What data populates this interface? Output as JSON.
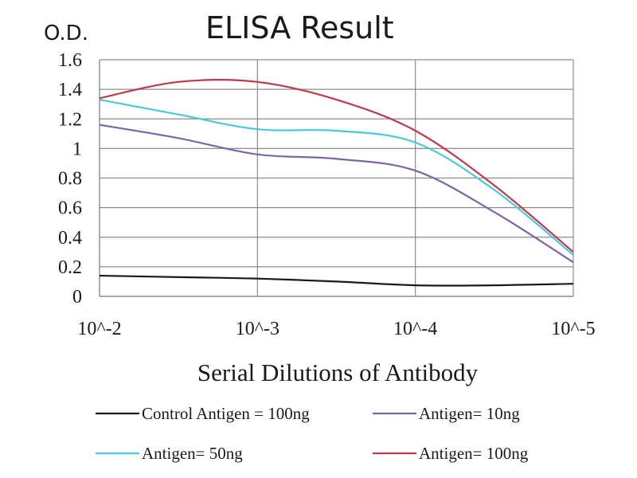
{
  "chart_data": {
    "type": "line",
    "title": "ELISA Result",
    "ylabel": "O.D.",
    "xlabel": "Serial Dilutions of Antibody",
    "categories": [
      "10^-2",
      "10^-3",
      "10^-4",
      "10^-5"
    ],
    "yticks": [
      "0",
      "0.2",
      "0.4",
      "0.6",
      "0.8",
      "1",
      "1.2",
      "1.4",
      "1.6"
    ],
    "ylim": [
      0,
      1.6
    ],
    "grid": true,
    "legend_position": "bottom",
    "series": [
      {
        "name": "Control Antigen = 100ng",
        "color": "#1a1a1a",
        "x": [
          0,
          0.5,
          1,
          1.5,
          2,
          2.5,
          3
        ],
        "values": [
          0.14,
          0.13,
          0.12,
          0.1,
          0.075,
          0.075,
          0.085
        ]
      },
      {
        "name": "Antigen= 10ng",
        "color": "#8064a2",
        "x": [
          0,
          0.5,
          1,
          1.5,
          2,
          2.5,
          3
        ],
        "values": [
          1.16,
          1.07,
          0.96,
          0.93,
          0.85,
          0.57,
          0.23
        ]
      },
      {
        "name": "Antigen= 50ng",
        "color": "#4bc8d8",
        "x": [
          0,
          0.5,
          1,
          1.5,
          2,
          2.5,
          3
        ],
        "values": [
          1.33,
          1.23,
          1.13,
          1.12,
          1.04,
          0.72,
          0.28
        ]
      },
      {
        "name": "Antigen= 100ng",
        "color": "#c0394b",
        "x": [
          0,
          0.5,
          1,
          1.5,
          2,
          2.5,
          3
        ],
        "values": [
          1.34,
          1.45,
          1.45,
          1.33,
          1.12,
          0.75,
          0.3
        ]
      }
    ]
  }
}
